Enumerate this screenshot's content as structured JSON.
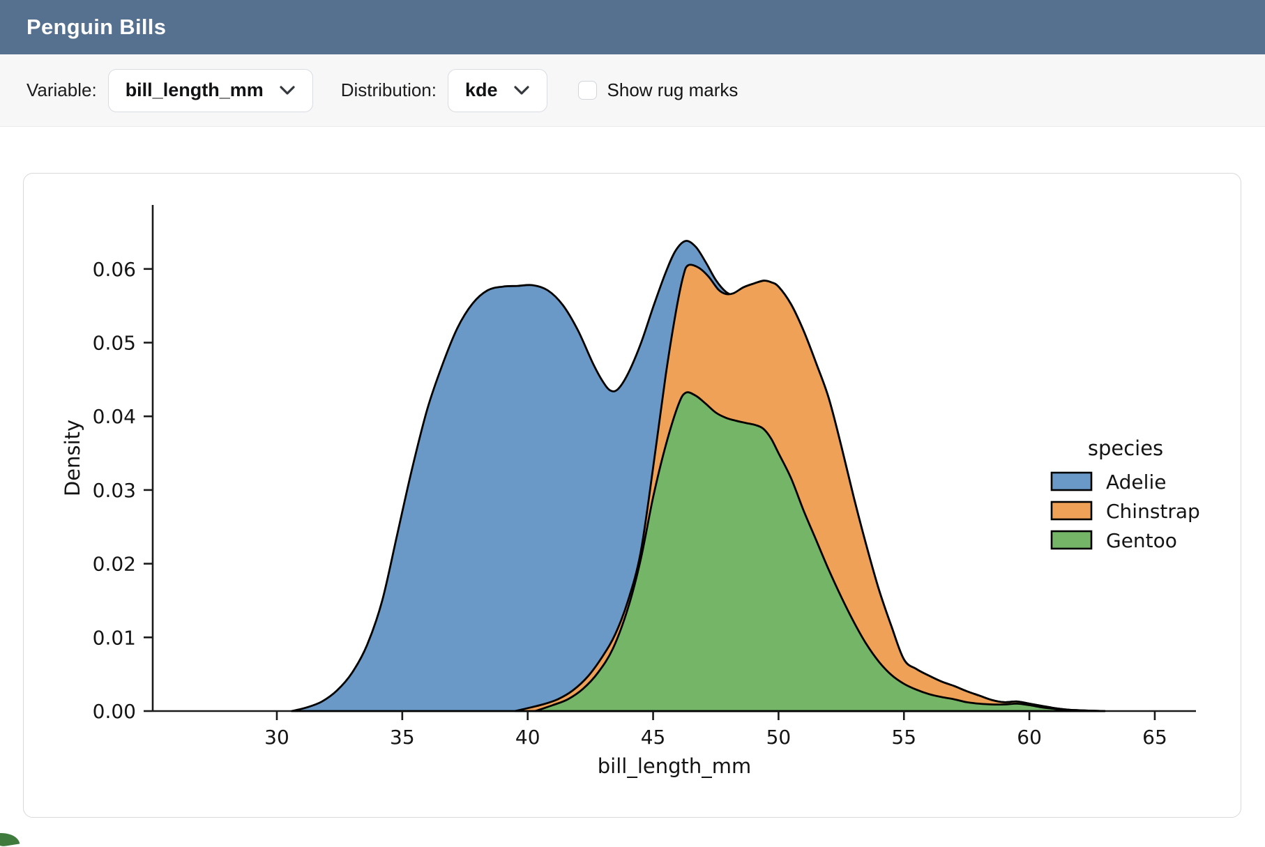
{
  "header": {
    "title": "Penguin Bills",
    "bg": "#56708f"
  },
  "toolbar": {
    "variable_label": "Variable:",
    "variable_value": "bill_length_mm",
    "distribution_label": "Distribution:",
    "distribution_value": "kde",
    "rug_label": "Show rug marks",
    "rug_checked": false
  },
  "chart_data": {
    "type": "area",
    "mode": "stacked-kde",
    "title": "",
    "xlabel": "bill_length_mm",
    "ylabel": "Density",
    "xlim": [
      25.1,
      66.6
    ],
    "ylim": [
      0,
      0.0687
    ],
    "grid": false,
    "x_ticks": [
      30,
      35,
      40,
      45,
      50,
      55,
      60,
      65
    ],
    "y_ticks": [
      0,
      0.01,
      0.02,
      0.03,
      0.04,
      0.05,
      0.06
    ],
    "y_tick_labels": [
      "0.00",
      "0.01",
      "0.02",
      "0.03",
      "0.04",
      "0.05",
      "0.06"
    ],
    "legend": {
      "title": "species",
      "position": "right",
      "entries": [
        "Adelie",
        "Chinstrap",
        "Gentoo"
      ]
    },
    "draw_order": [
      "Adelie",
      "Chinstrap",
      "Gentoo"
    ],
    "axis_color": "#1a1a1a",
    "outline_color": "#000000",
    "series": [
      {
        "name": "Adelie",
        "color": "#6b99c7",
        "points": [
          [
            30.6,
            0
          ],
          [
            31.2,
            0.0005
          ],
          [
            31.8,
            0.0013
          ],
          [
            32.4,
            0.0028
          ],
          [
            33.0,
            0.0052
          ],
          [
            33.6,
            0.009
          ],
          [
            34.2,
            0.015
          ],
          [
            34.8,
            0.024
          ],
          [
            35.4,
            0.033
          ],
          [
            36.0,
            0.041
          ],
          [
            36.6,
            0.047
          ],
          [
            37.2,
            0.052
          ],
          [
            37.8,
            0.0553
          ],
          [
            38.4,
            0.0571
          ],
          [
            39.0,
            0.0576
          ],
          [
            39.6,
            0.0577
          ],
          [
            40.2,
            0.0578
          ],
          [
            40.8,
            0.0571
          ],
          [
            41.4,
            0.0551
          ],
          [
            42.0,
            0.0517
          ],
          [
            42.6,
            0.0472
          ],
          [
            43.0,
            0.0447
          ],
          [
            43.3,
            0.0435
          ],
          [
            43.6,
            0.0437
          ],
          [
            44.0,
            0.0458
          ],
          [
            44.5,
            0.0498
          ],
          [
            45.0,
            0.0548
          ],
          [
            45.5,
            0.0595
          ],
          [
            45.9,
            0.0625
          ],
          [
            46.3,
            0.0638
          ],
          [
            46.7,
            0.063
          ],
          [
            47.1,
            0.0609
          ],
          [
            47.5,
            0.0585
          ],
          [
            47.9,
            0.0569
          ],
          [
            48.2,
            0.0566
          ],
          [
            48.6,
            0.0575
          ],
          [
            49.0,
            0.058
          ],
          [
            49.4,
            0.0584
          ],
          [
            49.7,
            0.0582
          ],
          [
            50.0,
            0.0576
          ],
          [
            50.5,
            0.0552
          ],
          [
            51.0,
            0.0516
          ],
          [
            51.5,
            0.0472
          ],
          [
            52.0,
            0.0425
          ],
          [
            52.5,
            0.036
          ],
          [
            53.0,
            0.029
          ],
          [
            53.5,
            0.0225
          ],
          [
            54.0,
            0.0165
          ],
          [
            54.5,
            0.0115
          ],
          [
            55.0,
            0.007
          ],
          [
            55.5,
            0.0057
          ],
          [
            56.0,
            0.0048
          ],
          [
            56.5,
            0.004
          ],
          [
            57.0,
            0.0034
          ],
          [
            57.5,
            0.0027
          ],
          [
            58.0,
            0.0021
          ],
          [
            58.5,
            0.0015
          ],
          [
            59.0,
            0.0012
          ],
          [
            59.5,
            0.0013
          ],
          [
            60.0,
            0.001
          ],
          [
            60.5,
            0.0007
          ],
          [
            61.0,
            0.0004
          ],
          [
            61.5,
            0.0002
          ],
          [
            62.0,
            0.0001
          ],
          [
            63.0,
            0
          ]
        ]
      },
      {
        "name": "Chinstrap",
        "color": "#efa157",
        "points": [
          [
            39.5,
            0
          ],
          [
            40.0,
            0.0004
          ],
          [
            40.6,
            0.0009
          ],
          [
            41.2,
            0.0016
          ],
          [
            41.8,
            0.0028
          ],
          [
            42.4,
            0.0047
          ],
          [
            43.0,
            0.0075
          ],
          [
            43.5,
            0.0105
          ],
          [
            44.0,
            0.015
          ],
          [
            44.5,
            0.0215
          ],
          [
            45.0,
            0.033
          ],
          [
            45.5,
            0.0455
          ],
          [
            45.9,
            0.054
          ],
          [
            46.2,
            0.059
          ],
          [
            46.4,
            0.0605
          ],
          [
            46.8,
            0.0602
          ],
          [
            47.2,
            0.059
          ],
          [
            47.6,
            0.0572
          ],
          [
            47.9,
            0.0566
          ],
          [
            48.2,
            0.0567
          ],
          [
            48.6,
            0.0575
          ],
          [
            49.0,
            0.058
          ],
          [
            49.4,
            0.0584
          ],
          [
            49.7,
            0.0582
          ],
          [
            50.0,
            0.0576
          ],
          [
            50.5,
            0.0552
          ],
          [
            51.0,
            0.0516
          ],
          [
            51.5,
            0.0472
          ],
          [
            52.0,
            0.0425
          ],
          [
            52.5,
            0.036
          ],
          [
            53.0,
            0.029
          ],
          [
            53.5,
            0.0225
          ],
          [
            54.0,
            0.0165
          ],
          [
            54.5,
            0.0115
          ],
          [
            55.0,
            0.007
          ],
          [
            55.5,
            0.0057
          ],
          [
            56.0,
            0.0048
          ],
          [
            56.5,
            0.004
          ],
          [
            57.0,
            0.0034
          ],
          [
            57.5,
            0.0027
          ],
          [
            58.0,
            0.0021
          ],
          [
            58.5,
            0.0015
          ],
          [
            59.0,
            0.0012
          ],
          [
            59.5,
            0.0013
          ],
          [
            60.0,
            0.001
          ],
          [
            60.5,
            0.0007
          ],
          [
            61.0,
            0.0004
          ],
          [
            61.5,
            0.0002
          ],
          [
            62.0,
            0.0001
          ],
          [
            63.0,
            0
          ]
        ]
      },
      {
        "name": "Gentoo",
        "color": "#74b568",
        "points": [
          [
            40.3,
            0
          ],
          [
            41.0,
            0.0008
          ],
          [
            41.6,
            0.0016
          ],
          [
            42.2,
            0.003
          ],
          [
            42.8,
            0.0052
          ],
          [
            43.4,
            0.0085
          ],
          [
            44.0,
            0.014
          ],
          [
            44.5,
            0.0205
          ],
          [
            45.0,
            0.029
          ],
          [
            45.5,
            0.036
          ],
          [
            46.0,
            0.0415
          ],
          [
            46.3,
            0.0432
          ],
          [
            46.7,
            0.0428
          ],
          [
            47.1,
            0.0417
          ],
          [
            47.5,
            0.0405
          ],
          [
            47.9,
            0.0398
          ],
          [
            48.3,
            0.0394
          ],
          [
            48.7,
            0.0391
          ],
          [
            49.1,
            0.0388
          ],
          [
            49.4,
            0.0383
          ],
          [
            49.7,
            0.037
          ],
          [
            50.0,
            0.035
          ],
          [
            50.5,
            0.0316
          ],
          [
            51.0,
            0.0272
          ],
          [
            51.5,
            0.0232
          ],
          [
            52.0,
            0.0192
          ],
          [
            52.5,
            0.0155
          ],
          [
            53.0,
            0.0121
          ],
          [
            53.5,
            0.0091
          ],
          [
            54.0,
            0.0067
          ],
          [
            54.5,
            0.0049
          ],
          [
            55.0,
            0.0037
          ],
          [
            55.5,
            0.0029
          ],
          [
            56.0,
            0.0023
          ],
          [
            56.5,
            0.0019
          ],
          [
            57.0,
            0.0016
          ],
          [
            57.5,
            0.0012
          ],
          [
            58.0,
            0.001
          ],
          [
            58.5,
            0.0009
          ],
          [
            59.0,
            0.0009
          ],
          [
            59.5,
            0.001
          ],
          [
            60.0,
            0.0008
          ],
          [
            60.5,
            0.0005
          ],
          [
            61.0,
            0.0003
          ],
          [
            61.5,
            0.0001
          ],
          [
            62.0,
            0
          ]
        ]
      }
    ]
  },
  "misc": {
    "corner_accent_color": "#3e7b3c"
  }
}
